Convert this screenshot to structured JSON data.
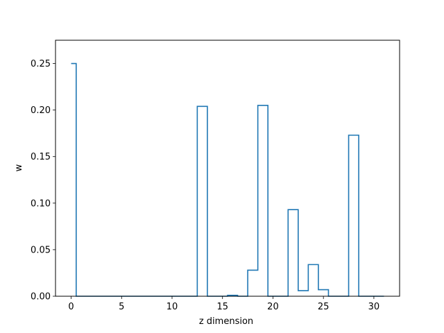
{
  "chart_data": {
    "type": "line",
    "drawstyle": "steps-mid",
    "xlabel": "z dimension",
    "ylabel": "w",
    "xlim": [
      -1.55,
      32.55
    ],
    "ylim": [
      0,
      0.275
    ],
    "x_ticks": [
      0,
      5,
      10,
      15,
      20,
      25,
      30
    ],
    "y_ticks": [
      0.0,
      0.05,
      0.1,
      0.15,
      0.2,
      0.25
    ],
    "x_tick_labels": [
      "0",
      "5",
      "10",
      "15",
      "20",
      "25",
      "30"
    ],
    "y_tick_labels": [
      "0.00",
      "0.05",
      "0.10",
      "0.15",
      "0.20",
      "0.25"
    ],
    "grid": false,
    "series": [
      {
        "color": "#1f77b4",
        "x": [
          0,
          1,
          2,
          3,
          4,
          5,
          6,
          7,
          8,
          9,
          10,
          11,
          12,
          13,
          14,
          15,
          16,
          17,
          18,
          19,
          20,
          21,
          22,
          23,
          24,
          25,
          26,
          27,
          28,
          29,
          30,
          31
        ],
        "values": [
          0.25,
          0,
          0,
          0,
          0,
          0,
          0,
          0,
          0,
          0,
          0,
          0,
          0,
          0.204,
          0,
          0,
          0.001,
          0,
          0.028,
          0.205,
          0,
          0,
          0.093,
          0.006,
          0.034,
          0.007,
          0,
          0,
          0.173,
          0,
          0,
          0
        ]
      }
    ]
  }
}
